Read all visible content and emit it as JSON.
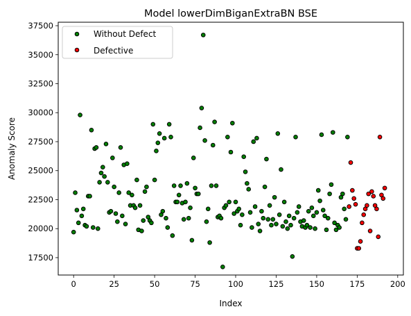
{
  "chart_data": {
    "type": "scatter",
    "title": "Model lowerDimBiganExtraBN BSE",
    "xlabel": "Index",
    "ylabel": "Anomaly Score",
    "xlim": [
      -9.5,
      203.5
    ],
    "ylim": [
      16000,
      37800
    ],
    "xticks": [
      0,
      25,
      50,
      75,
      100,
      125,
      150,
      175,
      200
    ],
    "yticks": [
      17500,
      20000,
      22500,
      25000,
      27500,
      30000,
      32500,
      35000,
      37500
    ],
    "xtick_labels": [
      "0",
      "25",
      "50",
      "75",
      "100",
      "125",
      "150",
      "175",
      "200"
    ],
    "ytick_labels": [
      "17500",
      "20000",
      "22500",
      "25000",
      "27500",
      "30000",
      "32500",
      "35000",
      "37500"
    ],
    "grid": false,
    "legend_position": "top-left",
    "series": [
      {
        "name": "Without Defect",
        "color": "#008000",
        "points": [
          [
            0,
            19700
          ],
          [
            1,
            23100
          ],
          [
            2,
            21600
          ],
          [
            3,
            20500
          ],
          [
            4,
            29800
          ],
          [
            5,
            21100
          ],
          [
            6,
            21700
          ],
          [
            7,
            20300
          ],
          [
            8,
            20200
          ],
          [
            9,
            22800
          ],
          [
            10,
            22800
          ],
          [
            11,
            28500
          ],
          [
            12,
            20100
          ],
          [
            13,
            26900
          ],
          [
            14,
            27000
          ],
          [
            15,
            20000
          ],
          [
            16,
            24000
          ],
          [
            17,
            24800
          ],
          [
            18,
            25300
          ],
          [
            19,
            24500
          ],
          [
            20,
            27300
          ],
          [
            21,
            24000
          ],
          [
            22,
            21400
          ],
          [
            23,
            21500
          ],
          [
            24,
            26100
          ],
          [
            25,
            23600
          ],
          [
            26,
            21300
          ],
          [
            27,
            20600
          ],
          [
            28,
            23100
          ],
          [
            29,
            27000
          ],
          [
            30,
            21100
          ],
          [
            31,
            25500
          ],
          [
            32,
            20400
          ],
          [
            33,
            25600
          ],
          [
            34,
            23100
          ],
          [
            35,
            22000
          ],
          [
            36,
            22900
          ],
          [
            37,
            22000
          ],
          [
            38,
            21800
          ],
          [
            39,
            24200
          ],
          [
            40,
            19900
          ],
          [
            41,
            22000
          ],
          [
            42,
            19800
          ],
          [
            43,
            20700
          ],
          [
            44,
            23200
          ],
          [
            45,
            23600
          ],
          [
            46,
            21000
          ],
          [
            47,
            20700
          ],
          [
            48,
            20500
          ],
          [
            49,
            29000
          ],
          [
            50,
            24200
          ],
          [
            51,
            26700
          ],
          [
            52,
            27400
          ],
          [
            53,
            28200
          ],
          [
            54,
            21200
          ],
          [
            55,
            21500
          ],
          [
            56,
            27800
          ],
          [
            57,
            20900
          ],
          [
            58,
            20100
          ],
          [
            59,
            29000
          ],
          [
            60,
            27900
          ],
          [
            61,
            19400
          ],
          [
            62,
            23700
          ],
          [
            63,
            22300
          ],
          [
            64,
            22300
          ],
          [
            65,
            22900
          ],
          [
            66,
            23700
          ],
          [
            67,
            22200
          ],
          [
            68,
            20800
          ],
          [
            69,
            22300
          ],
          [
            70,
            23900
          ],
          [
            71,
            20900
          ],
          [
            72,
            21800
          ],
          [
            73,
            19000
          ],
          [
            74,
            26100
          ],
          [
            75,
            23500
          ],
          [
            76,
            23000
          ],
          [
            77,
            23000
          ],
          [
            78,
            28700
          ],
          [
            79,
            30400
          ],
          [
            80,
            36700
          ],
          [
            81,
            27600
          ],
          [
            82,
            20600
          ],
          [
            83,
            21700
          ],
          [
            84,
            18800
          ],
          [
            85,
            23700
          ],
          [
            86,
            27200
          ],
          [
            87,
            29200
          ],
          [
            88,
            23700
          ],
          [
            89,
            21000
          ],
          [
            90,
            21100
          ],
          [
            91,
            20900
          ],
          [
            92,
            16700
          ],
          [
            93,
            21800
          ],
          [
            94,
            22000
          ],
          [
            95,
            27900
          ],
          [
            96,
            22300
          ],
          [
            97,
            26600
          ],
          [
            98,
            29100
          ],
          [
            99,
            21300
          ],
          [
            100,
            22300
          ],
          [
            101,
            21500
          ],
          [
            102,
            21700
          ],
          [
            103,
            20300
          ],
          [
            104,
            21200
          ],
          [
            105,
            26200
          ],
          [
            106,
            24900
          ],
          [
            107,
            23900
          ],
          [
            108,
            23400
          ],
          [
            109,
            21400
          ],
          [
            110,
            20100
          ],
          [
            111,
            27500
          ],
          [
            112,
            21900
          ],
          [
            113,
            27800
          ],
          [
            114,
            20400
          ],
          [
            115,
            19800
          ],
          [
            116,
            21500
          ],
          [
            117,
            20900
          ],
          [
            118,
            23600
          ],
          [
            119,
            26000
          ],
          [
            120,
            20800
          ],
          [
            121,
            22000
          ],
          [
            122,
            20300
          ],
          [
            123,
            20800
          ],
          [
            124,
            22700
          ],
          [
            125,
            20400
          ],
          [
            126,
            28200
          ],
          [
            127,
            21200
          ],
          [
            128,
            25100
          ],
          [
            129,
            20200
          ],
          [
            130,
            22300
          ],
          [
            131,
            20600
          ],
          [
            132,
            20000
          ],
          [
            133,
            21100
          ],
          [
            134,
            20300
          ],
          [
            135,
            17600
          ],
          [
            136,
            20900
          ],
          [
            137,
            27900
          ],
          [
            138,
            21400
          ],
          [
            139,
            21900
          ],
          [
            140,
            20600
          ],
          [
            141,
            20200
          ],
          [
            142,
            20700
          ],
          [
            143,
            20100
          ],
          [
            144,
            20300
          ],
          [
            145,
            21500
          ],
          [
            146,
            20100
          ],
          [
            147,
            21800
          ],
          [
            148,
            21100
          ],
          [
            149,
            20000
          ],
          [
            150,
            21400
          ],
          [
            151,
            23300
          ],
          [
            152,
            22400
          ],
          [
            153,
            28100
          ],
          [
            154,
            21600
          ],
          [
            155,
            21100
          ],
          [
            156,
            19900
          ],
          [
            157,
            20900
          ],
          [
            158,
            23000
          ],
          [
            159,
            23800
          ],
          [
            160,
            28300
          ],
          [
            161,
            20500
          ],
          [
            162,
            19900
          ],
          [
            163,
            20300
          ],
          [
            164,
            20100
          ],
          [
            165,
            22700
          ],
          [
            166,
            23000
          ],
          [
            167,
            21700
          ],
          [
            168,
            20800
          ],
          [
            169,
            27900
          ]
        ]
      },
      {
        "name": "Defective",
        "color": "#ff0000",
        "points": [
          [
            170,
            21900
          ],
          [
            171,
            25700
          ],
          [
            172,
            23300
          ],
          [
            173,
            22600
          ],
          [
            174,
            22100
          ],
          [
            175,
            18300
          ],
          [
            176,
            18300
          ],
          [
            177,
            18900
          ],
          [
            178,
            20500
          ],
          [
            179,
            21200
          ],
          [
            180,
            21700
          ],
          [
            181,
            22000
          ],
          [
            182,
            23000
          ],
          [
            183,
            19800
          ],
          [
            184,
            23200
          ],
          [
            185,
            22800
          ],
          [
            186,
            22000
          ],
          [
            187,
            21700
          ],
          [
            188,
            19300
          ],
          [
            189,
            27900
          ],
          [
            190,
            22900
          ],
          [
            191,
            22600
          ],
          [
            192,
            23500
          ]
        ]
      }
    ]
  }
}
